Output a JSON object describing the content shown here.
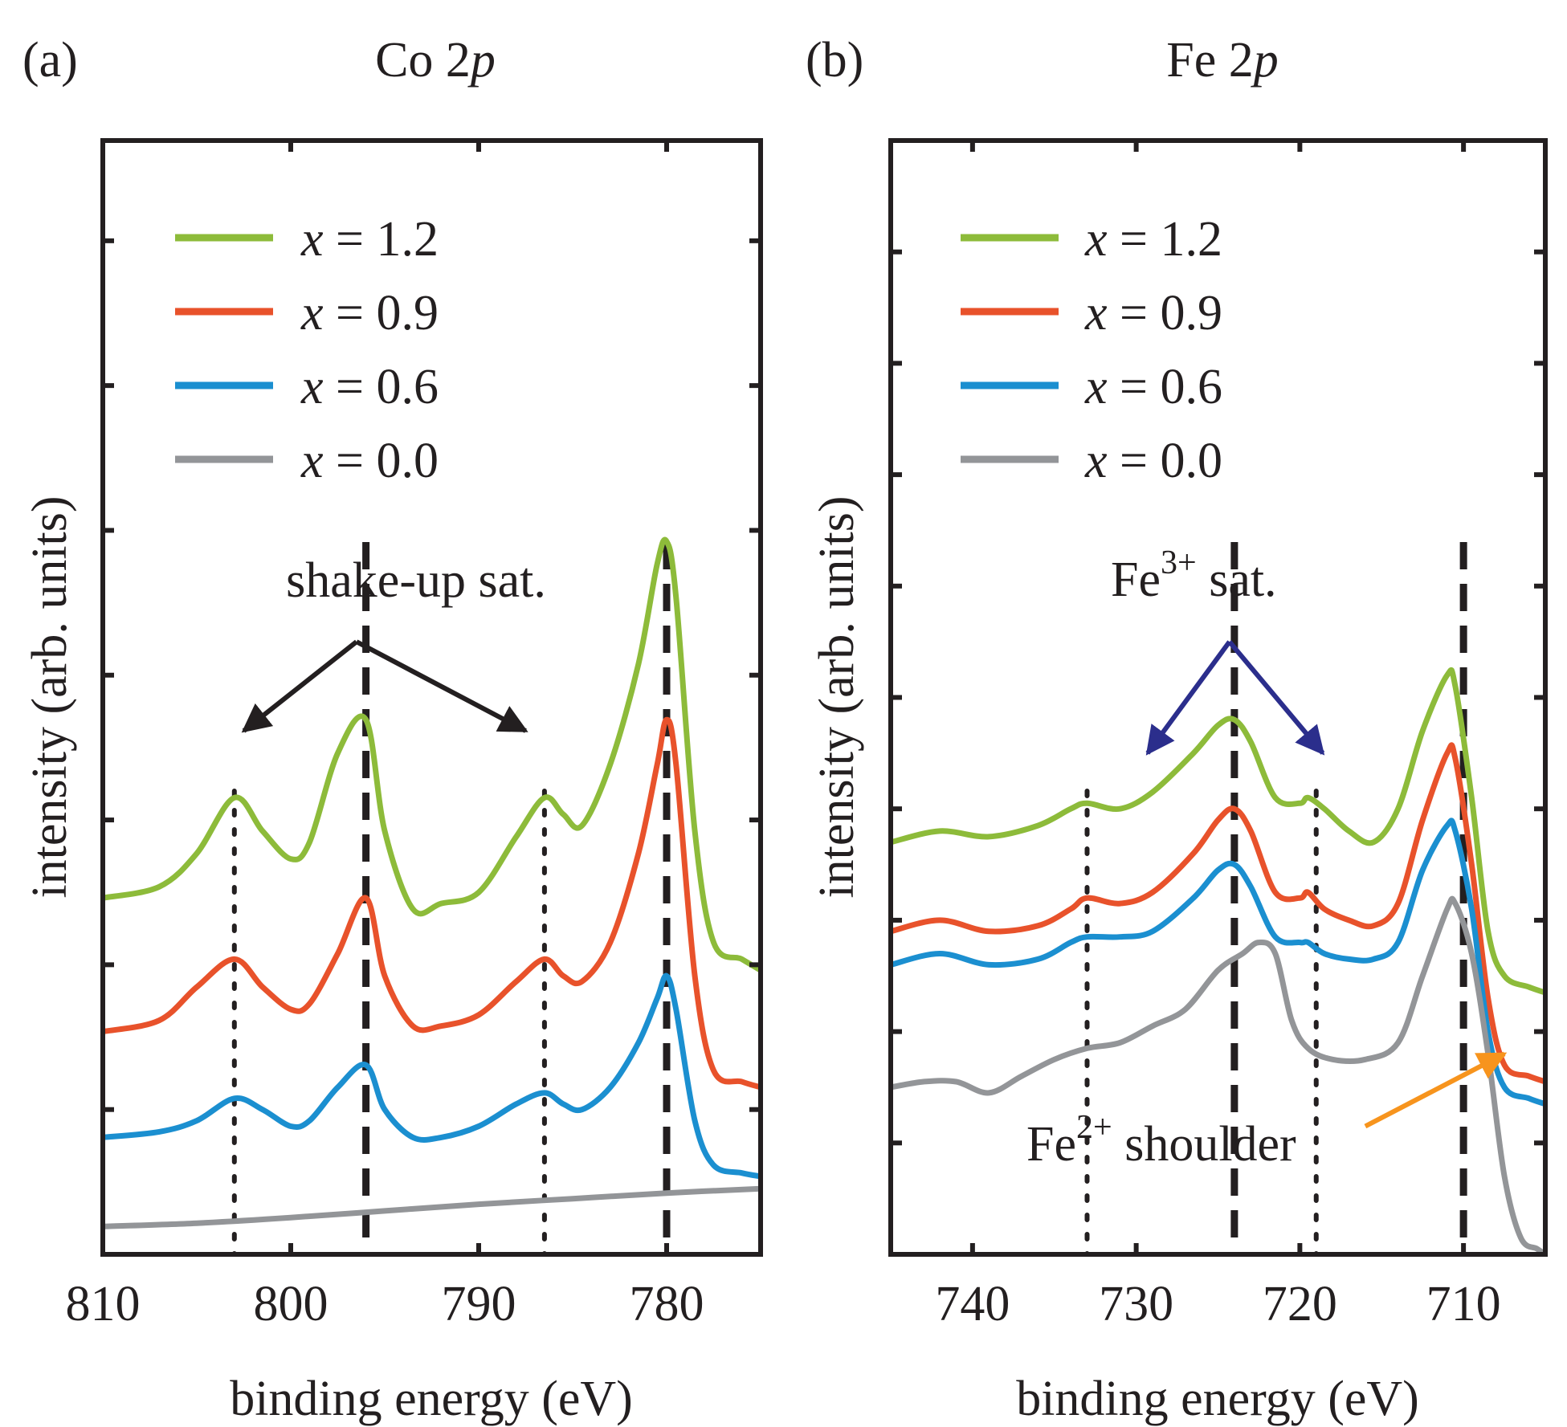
{
  "figure": {
    "colors": {
      "x12": "#8dbb3a",
      "x09": "#e8522b",
      "x06": "#1b8fd0",
      "x00": "#939598",
      "ink": "#231f20",
      "fe3_sat": "#2b2e8c",
      "fe2_shoulder": "#f7941d"
    }
  },
  "chart_data": [
    {
      "type": "line",
      "panel_label": "(a)",
      "title": {
        "element": "Co 2",
        "orbital": "p"
      },
      "xlabel": "binding energy (eV)",
      "ylabel": "intensity (arb. units)",
      "xlim": [
        810,
        775
      ],
      "ylim": [
        0,
        100
      ],
      "xticks": [
        810,
        800,
        790,
        780
      ],
      "xtick_labels": [
        "810",
        "800",
        "790",
        "780"
      ],
      "yticks_unlabeled": [
        13,
        26,
        39,
        52,
        65,
        78,
        91
      ],
      "legend": {
        "position": "top-left",
        "entries": [
          {
            "var": "x",
            "eq": " = 1.2",
            "color_key": "x12"
          },
          {
            "var": "x",
            "eq": " = 0.9",
            "color_key": "x09"
          },
          {
            "var": "x",
            "eq": " = 0.6",
            "color_key": "x06"
          },
          {
            "var": "x",
            "eq": " = 0.0",
            "color_key": "x00"
          }
        ]
      },
      "series": [
        {
          "name": "x = 1.2",
          "color_key": "x12",
          "x": [
            810,
            807,
            805,
            803,
            801.5,
            800,
            799,
            797.5,
            796,
            795,
            793.5,
            792,
            790,
            788,
            786.5,
            785.5,
            784.5,
            783,
            781.5,
            780.5,
            780,
            779.5,
            778.5,
            777.5,
            776,
            775
          ],
          "y": [
            32,
            33,
            36,
            41,
            38,
            35.5,
            37,
            45,
            48,
            38,
            31,
            31.5,
            32.5,
            37.5,
            41,
            39.5,
            38.5,
            44,
            53,
            62,
            64,
            59,
            38,
            28,
            26.5,
            25.5
          ]
        },
        {
          "name": "x = 0.9",
          "color_key": "x09",
          "x": [
            810,
            807,
            805,
            803,
            801.5,
            800,
            799,
            797.5,
            796,
            795,
            793.5,
            792,
            790,
            788,
            786.5,
            785.5,
            784.5,
            783,
            781.5,
            780.5,
            780,
            779.5,
            778.5,
            777.5,
            776,
            775
          ],
          "y": [
            20,
            21,
            24,
            26.5,
            24,
            22,
            22.5,
            27,
            32,
            25,
            20.5,
            20.5,
            21.5,
            24.5,
            26.5,
            25,
            24.5,
            28,
            36,
            44,
            48,
            44,
            25,
            16.5,
            15.5,
            15
          ]
        },
        {
          "name": "x = 0.6",
          "color_key": "x06",
          "x": [
            810,
            807,
            805,
            803,
            801.5,
            800,
            799,
            797.5,
            796,
            795,
            793.5,
            792,
            790,
            788,
            786.5,
            785.5,
            784.5,
            783,
            781.5,
            780.5,
            780,
            779.5,
            778.5,
            777.5,
            776,
            775
          ],
          "y": [
            10.5,
            11,
            12,
            14,
            13,
            11.5,
            12,
            15,
            17,
            13,
            10.5,
            10.5,
            11.5,
            13.5,
            14.5,
            13.5,
            13,
            15,
            19,
            23,
            25,
            22,
            12,
            8,
            7.3,
            7
          ]
        },
        {
          "name": "x = 0.0",
          "color_key": "x00",
          "x": [
            810,
            805,
            800,
            795,
            790,
            785,
            780,
            775
          ],
          "y": [
            2.5,
            2.8,
            3.3,
            3.9,
            4.5,
            5.0,
            5.5,
            5.9
          ]
        }
      ],
      "reference_lines": [
        {
          "x": 803,
          "style": "dotted"
        },
        {
          "x": 796,
          "style": "dashed"
        },
        {
          "x": 786.5,
          "style": "dotted"
        },
        {
          "x": 780,
          "style": "dashed"
        }
      ],
      "annotations": [
        {
          "text": "shake-up sat.",
          "color_key": "ink",
          "arrows_to": [
            [
              802.5,
              47
            ],
            [
              787.5,
              47
            ]
          ],
          "from": [
            796.5,
            55
          ],
          "text_at": [
            793,
            62
          ]
        }
      ]
    },
    {
      "type": "line",
      "panel_label": "(b)",
      "title": {
        "element": "Fe 2",
        "orbital": "p"
      },
      "xlabel": "binding energy (eV)",
      "ylabel": "intensity (arb. units)",
      "xlim": [
        745,
        705
      ],
      "ylim": [
        0,
        100
      ],
      "xticks": [
        740,
        730,
        720,
        710
      ],
      "xtick_labels": [
        "740",
        "730",
        "720",
        "710"
      ],
      "yticks_unlabeled": [
        10,
        20,
        30,
        40,
        50,
        60,
        70,
        80,
        90
      ],
      "legend": {
        "position": "top-left",
        "entries": [
          {
            "var": "x",
            "eq": " = 1.2",
            "color_key": "x12"
          },
          {
            "var": "x",
            "eq": " = 0.9",
            "color_key": "x09"
          },
          {
            "var": "x",
            "eq": " = 0.6",
            "color_key": "x06"
          },
          {
            "var": "x",
            "eq": " = 0.0",
            "color_key": "x00"
          }
        ]
      },
      "series": [
        {
          "name": "x = 1.2",
          "color_key": "x12",
          "x": [
            745,
            742,
            739,
            736,
            734,
            733,
            731,
            729,
            726.5,
            725,
            724,
            723,
            721.5,
            720,
            719.5,
            718.5,
            717,
            715.5,
            714,
            712.5,
            711,
            710.5,
            709.5,
            708.5,
            707.5,
            706,
            705
          ],
          "y": [
            37,
            38,
            37.5,
            38.5,
            40,
            40.5,
            40,
            41.5,
            45,
            47.5,
            48,
            46,
            41,
            40.5,
            41,
            40,
            38,
            37,
            40,
            47,
            52,
            51,
            41,
            29,
            25,
            24,
            23.5
          ]
        },
        {
          "name": "x = 0.9",
          "color_key": "x09",
          "x": [
            745,
            742,
            739,
            736,
            734,
            733,
            731,
            729,
            726.5,
            725,
            724,
            723,
            721.5,
            720,
            719.5,
            718.5,
            717,
            715.5,
            714,
            712.5,
            711,
            710.5,
            709.5,
            708.5,
            707.5,
            706,
            705
          ],
          "y": [
            29,
            30,
            29,
            29.5,
            31,
            32,
            31.5,
            32.5,
            36,
            39,
            40,
            38,
            32.5,
            32,
            32.5,
            31,
            30,
            29.5,
            31.5,
            39,
            45,
            44.5,
            35,
            23,
            17,
            16,
            15.5
          ]
        },
        {
          "name": "x = 0.6",
          "color_key": "x06",
          "x": [
            745,
            742,
            739,
            736,
            734,
            733,
            731,
            729,
            726.5,
            725,
            724,
            723,
            721.5,
            720,
            719.5,
            718.5,
            717,
            715.5,
            714,
            712.5,
            711,
            710.5,
            709.5,
            708.5,
            707.5,
            706,
            705
          ],
          "y": [
            26,
            27,
            26,
            26.5,
            28,
            28.5,
            28.5,
            29,
            32,
            34.5,
            35,
            33,
            28.5,
            28,
            28,
            27,
            26.5,
            26.5,
            28,
            34.5,
            38.5,
            38,
            31,
            20,
            15,
            14,
            13.5
          ]
        },
        {
          "name": "x = 0.0",
          "color_key": "x00",
          "x": [
            745,
            743,
            741,
            739,
            737,
            735,
            733,
            731,
            729,
            727,
            725,
            723.5,
            722.5,
            721.5,
            720.5,
            719.5,
            718,
            716,
            714,
            712.5,
            711,
            710.5,
            709.5,
            708.5,
            707.5,
            706.5,
            705.5,
            705
          ],
          "y": [
            15,
            15.5,
            15.5,
            14.5,
            16,
            17.5,
            18.5,
            19,
            20.5,
            22,
            25.5,
            27,
            28,
            27,
            21,
            18.5,
            17.5,
            17.5,
            19,
            25,
            31,
            31.5,
            27,
            18,
            7,
            1.5,
            0.5,
            0
          ]
        }
      ],
      "reference_lines": [
        {
          "x": 733,
          "style": "dotted"
        },
        {
          "x": 724,
          "style": "dashed"
        },
        {
          "x": 719,
          "style": "dotted"
        },
        {
          "x": 710,
          "style": "dashed"
        }
      ],
      "annotations": [
        {
          "text": "Fe",
          "sup": "3+",
          "tail": " sat.",
          "color_key": "fe3_sat",
          "arrows_to": [
            [
              729.3,
              45
            ],
            [
              718.6,
              45
            ]
          ],
          "from": [
            724.3,
            55
          ],
          "text_at": [
            727,
            58
          ]
        },
        {
          "text": "Fe",
          "sup": "2+",
          "tail": " shoulder",
          "color_key": "fe2_shoulder",
          "arrows_to": [
            [
              707.5,
              18
            ]
          ],
          "from": [
            716,
            11.5
          ],
          "text_at": [
            717.7,
            7
          ]
        }
      ]
    }
  ]
}
